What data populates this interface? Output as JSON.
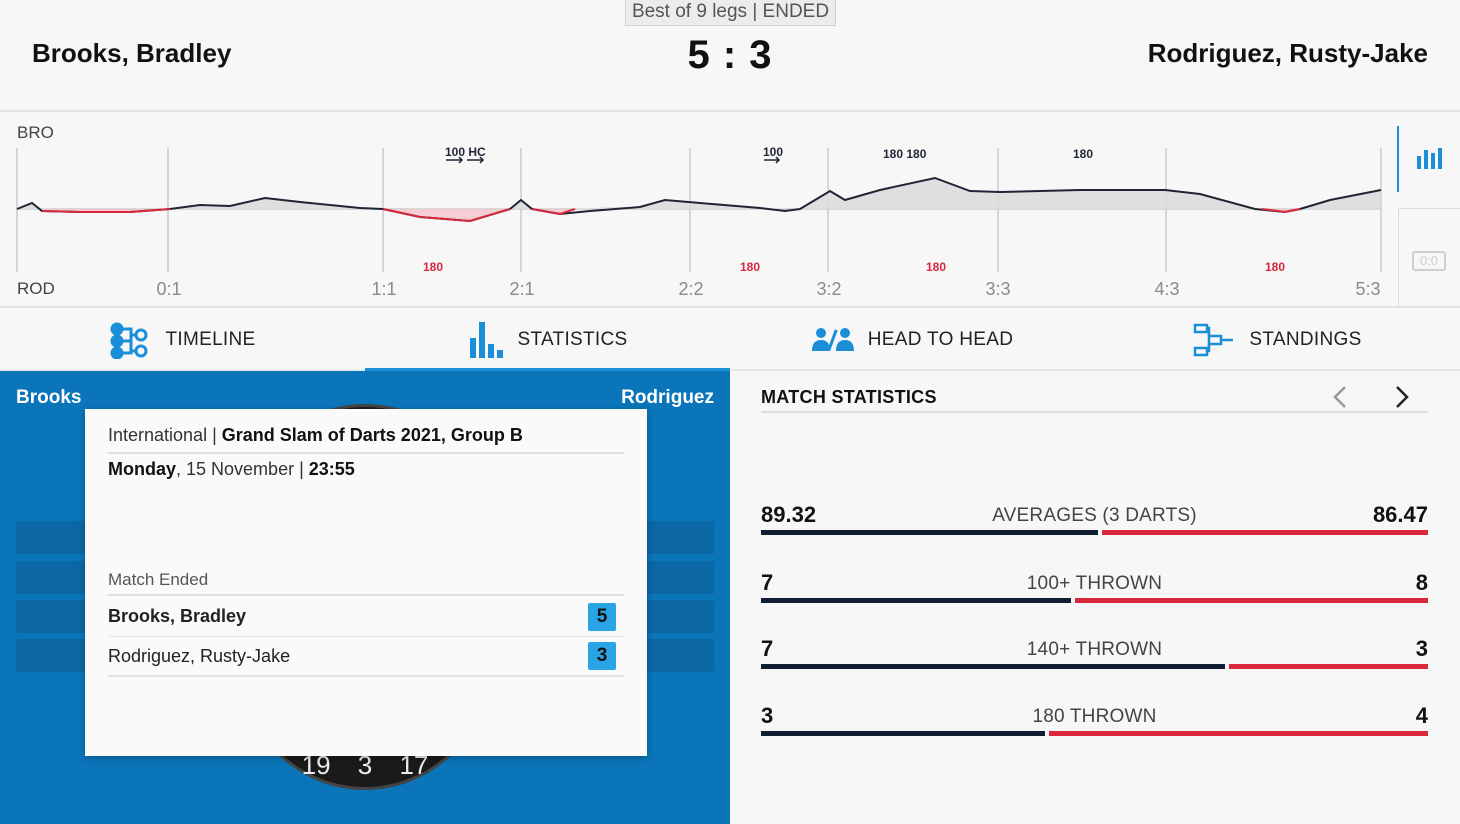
{
  "header": {
    "match_format": "Best of 9 legs | ENDED",
    "home_player": "Brooks, Bradley",
    "away_player": "Rodriguez, Rusty-Jake",
    "score": "5 : 3"
  },
  "graph": {
    "home_abbr": "BRO",
    "away_abbr": "ROD",
    "leg_labels": [
      "0:1",
      "1:1",
      "2:1",
      "2:2",
      "3:2",
      "3:3",
      "4:3",
      "5:3"
    ],
    "home_events": [
      "100 HC",
      "100",
      "180 180",
      "180"
    ],
    "away_events": [
      "180",
      "180",
      "180",
      "180"
    ],
    "score_icon": "0:0",
    "colors": {
      "home_line": "#1f2535",
      "away_line": "#d7283c",
      "fill": "#dcdcdc"
    }
  },
  "tabs": [
    {
      "label": "TIMELINE",
      "icon": "timeline-icon"
    },
    {
      "label": "STATISTICS",
      "icon": "bar-chart-icon"
    },
    {
      "label": "HEAD TO HEAD",
      "icon": "head-to-head-icon"
    },
    {
      "label": "STANDINGS",
      "icon": "standings-bracket-icon"
    }
  ],
  "active_tab": "STATISTICS",
  "left_panel": {
    "home_short": "Brooks",
    "away_short": "Rodriguez",
    "dartboard_numbers": [
      "19",
      "3",
      "17"
    ],
    "card": {
      "category": "International",
      "separator": " | ",
      "tournament": "Grand Slam of Darts 2021, Group B",
      "day": "Monday",
      "date": ", 15 November | ",
      "time": "23:55",
      "status": "Match Ended",
      "home_name": "Brooks, Bradley",
      "home_score": "5",
      "away_name": "Rodriguez, Rusty-Jake",
      "away_score": "3"
    }
  },
  "stats": {
    "title": "MATCH STATISTICS",
    "items": [
      {
        "label": "AVERAGES (3 DARTS)",
        "home": "89.32",
        "away": "86.47",
        "home_share": 0.508
      },
      {
        "label": "100+ THROWN",
        "home": "7",
        "away": "8",
        "home_share": 0.467
      },
      {
        "label": "140+ THROWN",
        "home": "7",
        "away": "3",
        "home_share": 0.7
      },
      {
        "label": "180 THROWN",
        "home": "3",
        "away": "4",
        "home_share": 0.429
      }
    ]
  }
}
